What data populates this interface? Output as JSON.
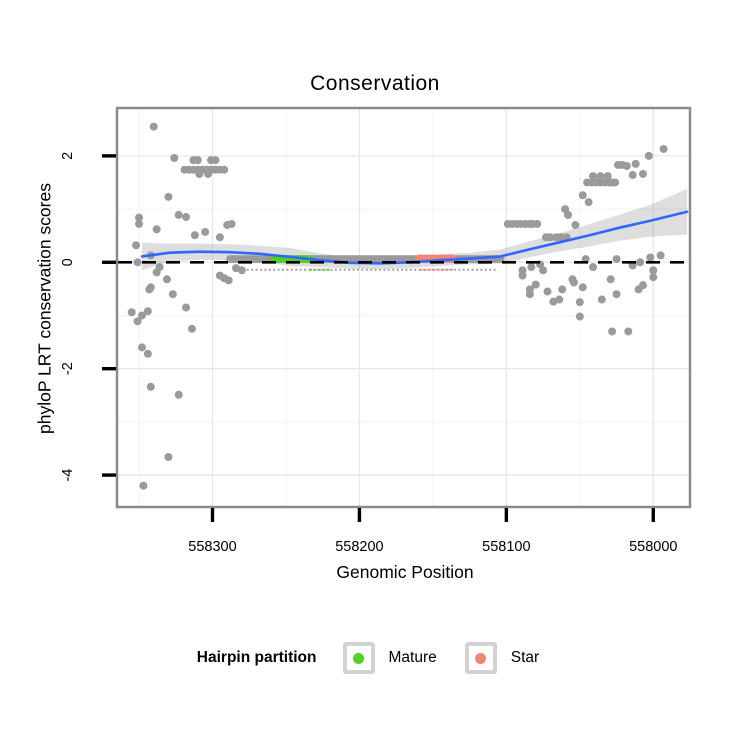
{
  "chart_data": {
    "type": "scatter",
    "title": "Conservation",
    "xlabel": "Genomic Position",
    "ylabel": "phyloP LRT conservation scores",
    "x_axis": {
      "reversed": true,
      "range_left": 558365,
      "range_right": 557975,
      "ticks": [
        558300,
        558200,
        558100,
        558000
      ],
      "minor": [
        558350,
        558250,
        558150,
        558050
      ]
    },
    "y_axis": {
      "range_top": 2.9,
      "range_bottom": -4.6,
      "ticks": [
        2,
        0,
        -2,
        -4
      ],
      "minor": [
        1,
        -1,
        -3
      ]
    },
    "hline": {
      "y": 0,
      "style": "dashed",
      "color": "#000000"
    },
    "colors": {
      "point_gray": "#9a9a9a",
      "smooth_blue": "#3366ff",
      "ribbon": "rgba(105,105,105,0.22)",
      "mature_green": "#50d21e",
      "star_salmon": "#f08575",
      "grid_major": "#e8e8e8",
      "grid_minor": "#f3f3f3",
      "panel_border": "#8a8a8a"
    },
    "points": [
      [
        558340,
        2.55
      ],
      [
        558350,
        0.84
      ],
      [
        558352,
        0.32
      ],
      [
        558350,
        0.72
      ],
      [
        558338,
        0.62
      ],
      [
        558342,
        0.13
      ],
      [
        558351,
        0.0
      ],
      [
        558336,
        -0.09
      ],
      [
        558338,
        -0.19
      ],
      [
        558331,
        -0.32
      ],
      [
        558342,
        -0.47
      ],
      [
        558327,
        -0.6
      ],
      [
        558343,
        -0.51
      ],
      [
        558355,
        -0.94
      ],
      [
        558351,
        -1.11
      ],
      [
        558344,
        -0.92
      ],
      [
        558348,
        -1.0
      ],
      [
        558318,
        -0.85
      ],
      [
        558314,
        -1.25
      ],
      [
        558344,
        -1.72
      ],
      [
        558348,
        -1.6
      ],
      [
        558342,
        -2.34
      ],
      [
        558323,
        -2.49
      ],
      [
        558330,
        -3.66
      ],
      [
        558347,
        -4.2
      ],
      [
        558330,
        1.23
      ],
      [
        558326,
        1.96
      ],
      [
        558313,
        1.92
      ],
      [
        558310,
        1.92
      ],
      [
        558301,
        1.92
      ],
      [
        558298,
        1.92
      ],
      [
        558319,
        1.74
      ],
      [
        558316,
        1.74
      ],
      [
        558313,
        1.74
      ],
      [
        558310,
        1.74
      ],
      [
        558307,
        1.74
      ],
      [
        558304,
        1.74
      ],
      [
        558301,
        1.74
      ],
      [
        558298,
        1.74
      ],
      [
        558295,
        1.74
      ],
      [
        558292,
        1.74
      ],
      [
        558309,
        1.66
      ],
      [
        558303,
        1.66
      ],
      [
        558323,
        0.89
      ],
      [
        558318,
        0.85
      ],
      [
        558312,
        0.51
      ],
      [
        558305,
        0.57
      ],
      [
        558290,
        0.7
      ],
      [
        558287,
        0.72
      ],
      [
        558295,
        0.47
      ],
      [
        558292,
        -0.3
      ],
      [
        558289,
        -0.34
      ],
      [
        558295,
        -0.25
      ],
      [
        558284,
        -0.11
      ],
      [
        558280,
        -0.15
      ],
      [
        558099,
        0.72
      ],
      [
        558096,
        0.72
      ],
      [
        558093,
        0.72
      ],
      [
        558090,
        0.72
      ],
      [
        558087,
        0.72
      ],
      [
        558084,
        0.72
      ],
      [
        558082,
        0.72
      ],
      [
        558079,
        0.72
      ],
      [
        558073,
        0.47
      ],
      [
        558070,
        0.47
      ],
      [
        558066,
        0.47
      ],
      [
        558063,
        0.47
      ],
      [
        558059,
        0.47
      ],
      [
        558058,
        0.89
      ],
      [
        558053,
        0.7
      ],
      [
        558048,
        1.26
      ],
      [
        558044,
        1.13
      ],
      [
        558060,
        1.0
      ],
      [
        558045,
        1.5
      ],
      [
        558042,
        1.5
      ],
      [
        558039,
        1.5
      ],
      [
        558036,
        1.5
      ],
      [
        558033,
        1.5
      ],
      [
        558030,
        1.5
      ],
      [
        558028,
        1.5
      ],
      [
        558026,
        1.5
      ],
      [
        558041,
        1.62
      ],
      [
        558036,
        1.62
      ],
      [
        558031,
        1.62
      ],
      [
        558024,
        1.83
      ],
      [
        558021,
        1.83
      ],
      [
        558018,
        1.81
      ],
      [
        558014,
        1.64
      ],
      [
        558012,
        1.85
      ],
      [
        558007,
        1.66
      ],
      [
        558003,
        2.0
      ],
      [
        557993,
        2.13
      ],
      [
        558089,
        -0.15
      ],
      [
        558083,
        -0.09
      ],
      [
        558077,
        -0.04
      ],
      [
        558075,
        -0.15
      ],
      [
        558046,
        0.06
      ],
      [
        558041,
        -0.09
      ],
      [
        558025,
        0.06
      ],
      [
        558014,
        -0.06
      ],
      [
        558009,
        0.0
      ],
      [
        558002,
        0.09
      ],
      [
        558000,
        -0.15
      ],
      [
        557995,
        0.13
      ],
      [
        558089,
        -0.25
      ],
      [
        558080,
        -0.42
      ],
      [
        558084,
        -0.51
      ],
      [
        558055,
        -0.32
      ],
      [
        558048,
        -0.47
      ],
      [
        558029,
        -0.32
      ],
      [
        558007,
        -0.43
      ],
      [
        558000,
        -0.28
      ],
      [
        558084,
        -0.6
      ],
      [
        558072,
        -0.55
      ],
      [
        558062,
        -0.51
      ],
      [
        558068,
        -0.74
      ],
      [
        558064,
        -0.7
      ],
      [
        558050,
        -0.75
      ],
      [
        558050,
        -1.02
      ],
      [
        558035,
        -0.7
      ],
      [
        558025,
        -0.6
      ],
      [
        558010,
        -0.51
      ],
      [
        558054,
        -0.38
      ],
      [
        558028,
        -1.3
      ],
      [
        558017,
        -1.3
      ]
    ],
    "dense_band": {
      "from": 558288,
      "to": 558103,
      "step": 2,
      "value": 0.06,
      "radius": 4,
      "color": "#9a9a9a"
    },
    "dot_row": {
      "from": 558282,
      "to": 558106,
      "step": 3,
      "value": -0.14,
      "radius": 1.1,
      "color": "#a0a0a0"
    },
    "mature_band": {
      "from": 558258,
      "to": 558234,
      "step": 2,
      "value": 0.06,
      "radius": 4,
      "color": "#50d21e"
    },
    "star_band": {
      "from": 558159,
      "to": 558136,
      "step": 2,
      "value": 0.07,
      "radius": 4,
      "color": "#f08575"
    },
    "mature_dots": {
      "from": 558233,
      "to": 558220,
      "step": 3,
      "value": -0.14,
      "radius": 1.1,
      "color": "#50d21e"
    },
    "star_dots": {
      "from": 558158,
      "to": 558137,
      "step": 3,
      "value": -0.14,
      "radius": 1.1,
      "color": "#f08575"
    },
    "smooth": {
      "color": "#3366ff",
      "points": [
        [
          558348,
          0.11,
          0.26
        ],
        [
          558329,
          0.18,
          0.17
        ],
        [
          558309,
          0.2,
          0.15
        ],
        [
          558288,
          0.19,
          0.15
        ],
        [
          558268,
          0.16,
          0.15
        ],
        [
          558247,
          0.1,
          0.17
        ],
        [
          558227,
          0.04,
          0.13
        ],
        [
          558207,
          -0.01,
          0.11
        ],
        [
          558186,
          -0.02,
          0.11
        ],
        [
          558166,
          0.0,
          0.11
        ],
        [
          558145,
          0.04,
          0.11
        ],
        [
          558125,
          0.07,
          0.11
        ],
        [
          558104,
          0.11,
          0.13
        ],
        [
          558084,
          0.245,
          0.15
        ],
        [
          558063,
          0.38,
          0.17
        ],
        [
          558043,
          0.51,
          0.21
        ],
        [
          558023,
          0.65,
          0.245
        ],
        [
          558002,
          0.78,
          0.3
        ],
        [
          557977,
          0.95,
          0.43
        ]
      ]
    },
    "legend": {
      "title": "Hairpin partition",
      "items": [
        {
          "label": "Mature",
          "color": "#50d21e"
        },
        {
          "label": "Star",
          "color": "#f08575"
        }
      ]
    }
  }
}
